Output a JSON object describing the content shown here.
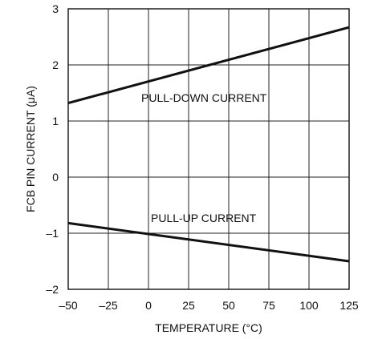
{
  "chart_data": {
    "type": "line",
    "title": "",
    "xlabel": "TEMPERATURE (°C)",
    "ylabel": "FCB PIN CURRENT (μA)",
    "xlim": [
      -50,
      125
    ],
    "ylim": [
      -2,
      3
    ],
    "xticks": [
      -50,
      -25,
      0,
      25,
      50,
      75,
      100,
      125
    ],
    "yticks": [
      -2,
      -1,
      0,
      1,
      2,
      3
    ],
    "xtick_labels": [
      "–50",
      "–25",
      "0",
      "25",
      "50",
      "75",
      "100",
      "125"
    ],
    "ytick_labels": [
      "–2",
      "–1",
      "0",
      "1",
      "2",
      "3"
    ],
    "grid": true,
    "series": [
      {
        "name": "PULL-DOWN CURRENT",
        "x": [
          -50,
          125
        ],
        "y": [
          1.32,
          2.67
        ]
      },
      {
        "name": "PULL-UP CURRENT",
        "x": [
          -50,
          125
        ],
        "y": [
          -0.82,
          -1.5
        ]
      }
    ]
  }
}
